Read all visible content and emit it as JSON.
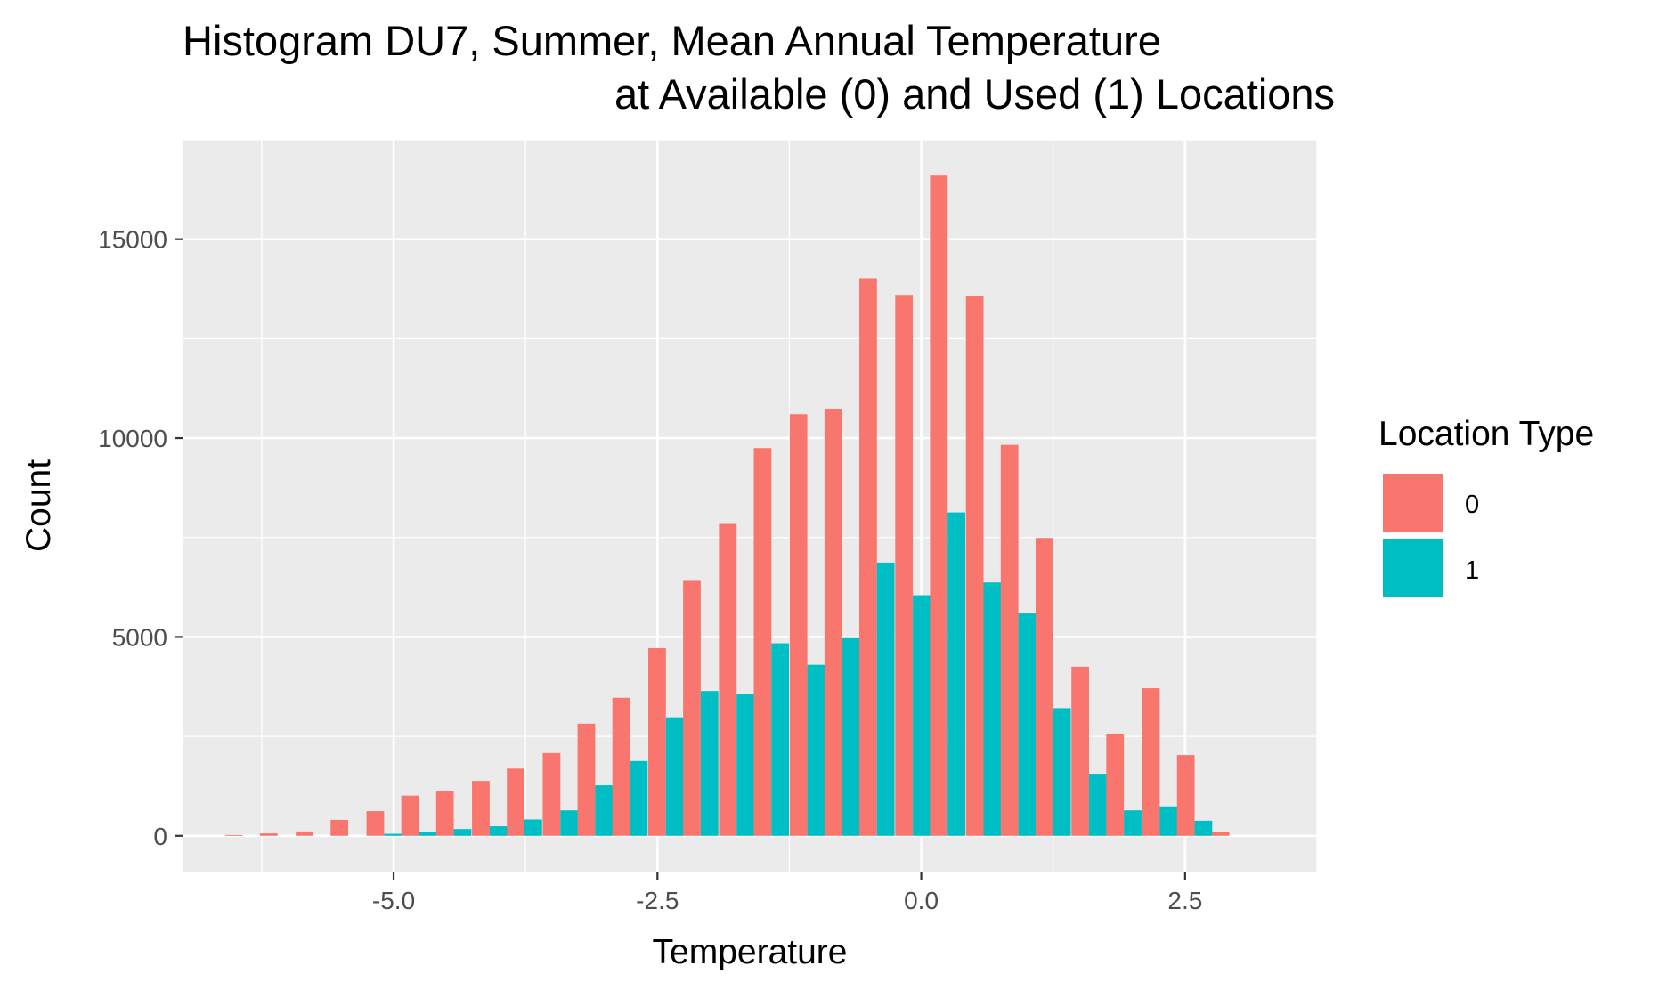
{
  "chart_data": {
    "type": "bar",
    "title_lines": [
      "Histogram DU7, Summer, Mean Annual Temperature",
      "at Available (0) and Used (1) Locations"
    ],
    "xlabel": "Temperature",
    "ylabel": "Count",
    "xlim": [
      -7.0,
      3.75
    ],
    "ylim": [
      -900,
      17500
    ],
    "x_ticks": [
      -5.0,
      -2.5,
      0.0,
      2.5
    ],
    "x_tick_labels": [
      "-5.0",
      "-2.5",
      "0.0",
      "2.5"
    ],
    "y_ticks": [
      0,
      5000,
      10000,
      15000
    ],
    "y_tick_labels": [
      "0",
      "5000",
      "10000",
      "15000"
    ],
    "grid": true,
    "bin_width": 0.334,
    "bin_centers": [
      -6.43,
      -6.1,
      -5.76,
      -5.43,
      -5.09,
      -4.76,
      -4.43,
      -4.09,
      -3.76,
      -3.42,
      -3.09,
      -2.76,
      -2.42,
      -2.09,
      -1.75,
      -1.42,
      -1.08,
      -0.75,
      -0.42,
      -0.08,
      0.25,
      0.59,
      0.92,
      1.25,
      1.59,
      1.92,
      2.26,
      2.59,
      2.92
    ],
    "series": [
      {
        "name": "0",
        "color": "#F8766D",
        "values": [
          20,
          60,
          110,
          400,
          620,
          1010,
          1120,
          1380,
          1690,
          2080,
          2820,
          3470,
          4720,
          6410,
          7840,
          9750,
          10600,
          10740,
          14020,
          13600,
          16600,
          13560,
          9830,
          7490,
          4250,
          2570,
          3710,
          2030,
          100
        ]
      },
      {
        "name": "1",
        "color": "#00BFC4",
        "values": [
          0,
          0,
          0,
          0,
          50,
          100,
          170,
          240,
          410,
          640,
          1270,
          1880,
          2980,
          3640,
          3560,
          4840,
          4300,
          4970,
          6870,
          6050,
          8130,
          6370,
          5590,
          3210,
          1560,
          640,
          740,
          380,
          0
        ]
      }
    ],
    "legend": {
      "title": "Location Type",
      "position": "right",
      "entries": [
        {
          "label": "0",
          "color": "#F8766D"
        },
        {
          "label": "1",
          "color": "#00BFC4"
        }
      ]
    },
    "panel_background": "#EBEBEB",
    "grid_color": "#FFFFFF"
  }
}
